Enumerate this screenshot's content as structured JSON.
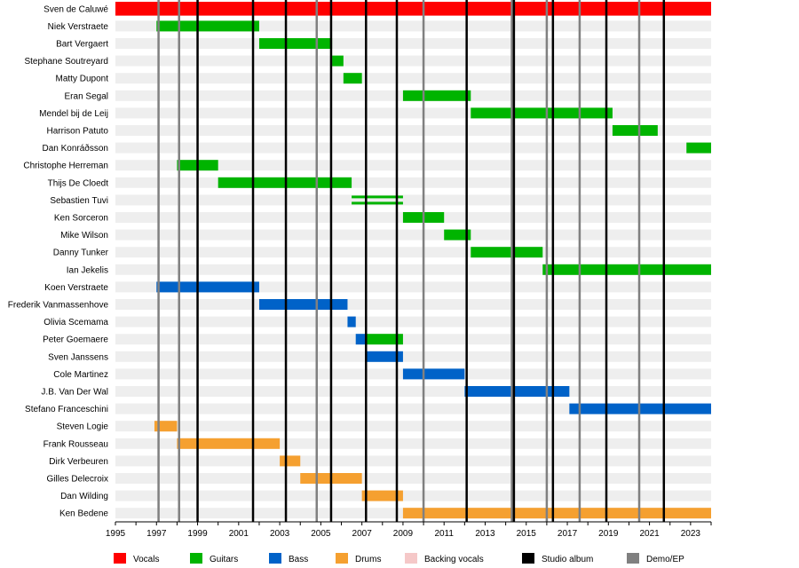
{
  "chart_data": {
    "type": "timeline",
    "title": "",
    "xlim": [
      1995,
      2024
    ],
    "ticks": [
      1995,
      1997,
      1999,
      2001,
      2003,
      2005,
      2007,
      2009,
      2011,
      2013,
      2015,
      2017,
      2019,
      2021,
      2023
    ],
    "colors": {
      "Vocals": "#ff0000",
      "Guitars": "#00b400",
      "Bass": "#0062c8",
      "Drums": "#f5a030",
      "Backing vocals": "#f5c8c8",
      "Studio album": "#000000",
      "Demo/EP": "#808080"
    },
    "legend": [
      "Vocals",
      "Guitars",
      "Bass",
      "Drums",
      "Backing vocals",
      "Studio album",
      "Demo/EP"
    ],
    "members": [
      {
        "name": "Sven de Caluwé",
        "bars": [
          {
            "role": "Vocals",
            "start": 1995,
            "end": 2024
          }
        ]
      },
      {
        "name": "Niek Verstraete",
        "bars": [
          {
            "role": "Guitars",
            "start": 1997,
            "end": 2002
          }
        ]
      },
      {
        "name": "Bart Vergaert",
        "bars": [
          {
            "role": "Guitars",
            "start": 2002,
            "end": 2005.55
          }
        ]
      },
      {
        "name": "Stephane Soutreyard",
        "bars": [
          {
            "role": "Guitars",
            "start": 2005.55,
            "end": 2006.1
          }
        ]
      },
      {
        "name": "Matty Dupont",
        "bars": [
          {
            "role": "Guitars",
            "start": 2006.1,
            "end": 2007
          }
        ]
      },
      {
        "name": "Eran Segal",
        "bars": [
          {
            "role": "Guitars",
            "start": 2009,
            "end": 2012.3
          }
        ]
      },
      {
        "name": "Mendel bij de Leij",
        "bars": [
          {
            "role": "Guitars",
            "start": 2012.3,
            "end": 2019.2
          }
        ]
      },
      {
        "name": "Harrison Patuto",
        "bars": [
          {
            "role": "Guitars",
            "start": 2019.2,
            "end": 2021.4
          }
        ]
      },
      {
        "name": "Dan Konráðsson",
        "bars": [
          {
            "role": "Guitars",
            "start": 2022.8,
            "end": 2024
          }
        ]
      },
      {
        "name": "Christophe Herreman",
        "bars": [
          {
            "role": "Guitars",
            "start": 1998,
            "end": 2000
          }
        ]
      },
      {
        "name": "Thijs De Cloedt",
        "bars": [
          {
            "role": "Guitars",
            "start": 2000,
            "end": 2006.5
          }
        ]
      },
      {
        "name": "Sebastien Tuvi",
        "bars": [
          {
            "role": "Guitars",
            "start": 2006.5,
            "end": 2009,
            "split": true
          }
        ]
      },
      {
        "name": "Ken Sorceron",
        "bars": [
          {
            "role": "Guitars",
            "start": 2009,
            "end": 2011
          }
        ]
      },
      {
        "name": "Mike Wilson",
        "bars": [
          {
            "role": "Guitars",
            "start": 2011,
            "end": 2012.3
          }
        ]
      },
      {
        "name": "Danny Tunker",
        "bars": [
          {
            "role": "Guitars",
            "start": 2012.3,
            "end": 2015.8
          }
        ]
      },
      {
        "name": "Ian Jekelis",
        "bars": [
          {
            "role": "Guitars",
            "start": 2015.8,
            "end": 2024
          }
        ]
      },
      {
        "name": "Koen Verstraete",
        "bars": [
          {
            "role": "Bass",
            "start": 1997,
            "end": 2002
          }
        ]
      },
      {
        "name": "Frederik Vanmassenhove",
        "bars": [
          {
            "role": "Bass",
            "start": 2002,
            "end": 2006.3
          }
        ]
      },
      {
        "name": "Olivia Scemama",
        "bars": [
          {
            "role": "Bass",
            "start": 2006.3,
            "end": 2006.7
          }
        ]
      },
      {
        "name": "Peter Goemaere",
        "bars": [
          {
            "role": "Bass",
            "start": 2006.7,
            "end": 2007.2
          },
          {
            "role": "Guitars",
            "start": 2007.2,
            "end": 2009
          }
        ]
      },
      {
        "name": "Sven Janssens",
        "bars": [
          {
            "role": "Bass",
            "start": 2007.2,
            "end": 2009
          }
        ]
      },
      {
        "name": "Cole Martinez",
        "bars": [
          {
            "role": "Bass",
            "start": 2009,
            "end": 2012
          }
        ]
      },
      {
        "name": "J.B. Van Der Wal",
        "bars": [
          {
            "role": "Bass",
            "start": 2012,
            "end": 2017.1
          }
        ]
      },
      {
        "name": "Stefano Franceschini",
        "bars": [
          {
            "role": "Bass",
            "start": 2017.1,
            "end": 2024
          }
        ]
      },
      {
        "name": "Steven Logie",
        "bars": [
          {
            "role": "Drums",
            "start": 1996.9,
            "end": 1998
          }
        ]
      },
      {
        "name": "Frank Rousseau",
        "bars": [
          {
            "role": "Drums",
            "start": 1998,
            "end": 2003
          }
        ]
      },
      {
        "name": "Dirk Verbeuren",
        "bars": [
          {
            "role": "Drums",
            "start": 2003,
            "end": 2004
          }
        ]
      },
      {
        "name": "Gilles Delecroix",
        "bars": [
          {
            "role": "Drums",
            "start": 2004,
            "end": 2007
          }
        ]
      },
      {
        "name": "Dan Wilding",
        "bars": [
          {
            "role": "Drums",
            "start": 2007,
            "end": 2009
          }
        ]
      },
      {
        "name": "Ken Bedene",
        "bars": [
          {
            "role": "Drums",
            "start": 2009,
            "end": 2024
          }
        ]
      }
    ],
    "studio_albums": [
      1999.0,
      2001.7,
      2003.3,
      2005.5,
      2007.2,
      2008.7,
      2012.1,
      2014.4,
      2016.3,
      2018.9,
      2021.7
    ],
    "demos": [
      1997.1,
      1998.1,
      2004.8,
      2010.0,
      2014.3,
      2016.0,
      2017.6,
      2020.5
    ]
  }
}
